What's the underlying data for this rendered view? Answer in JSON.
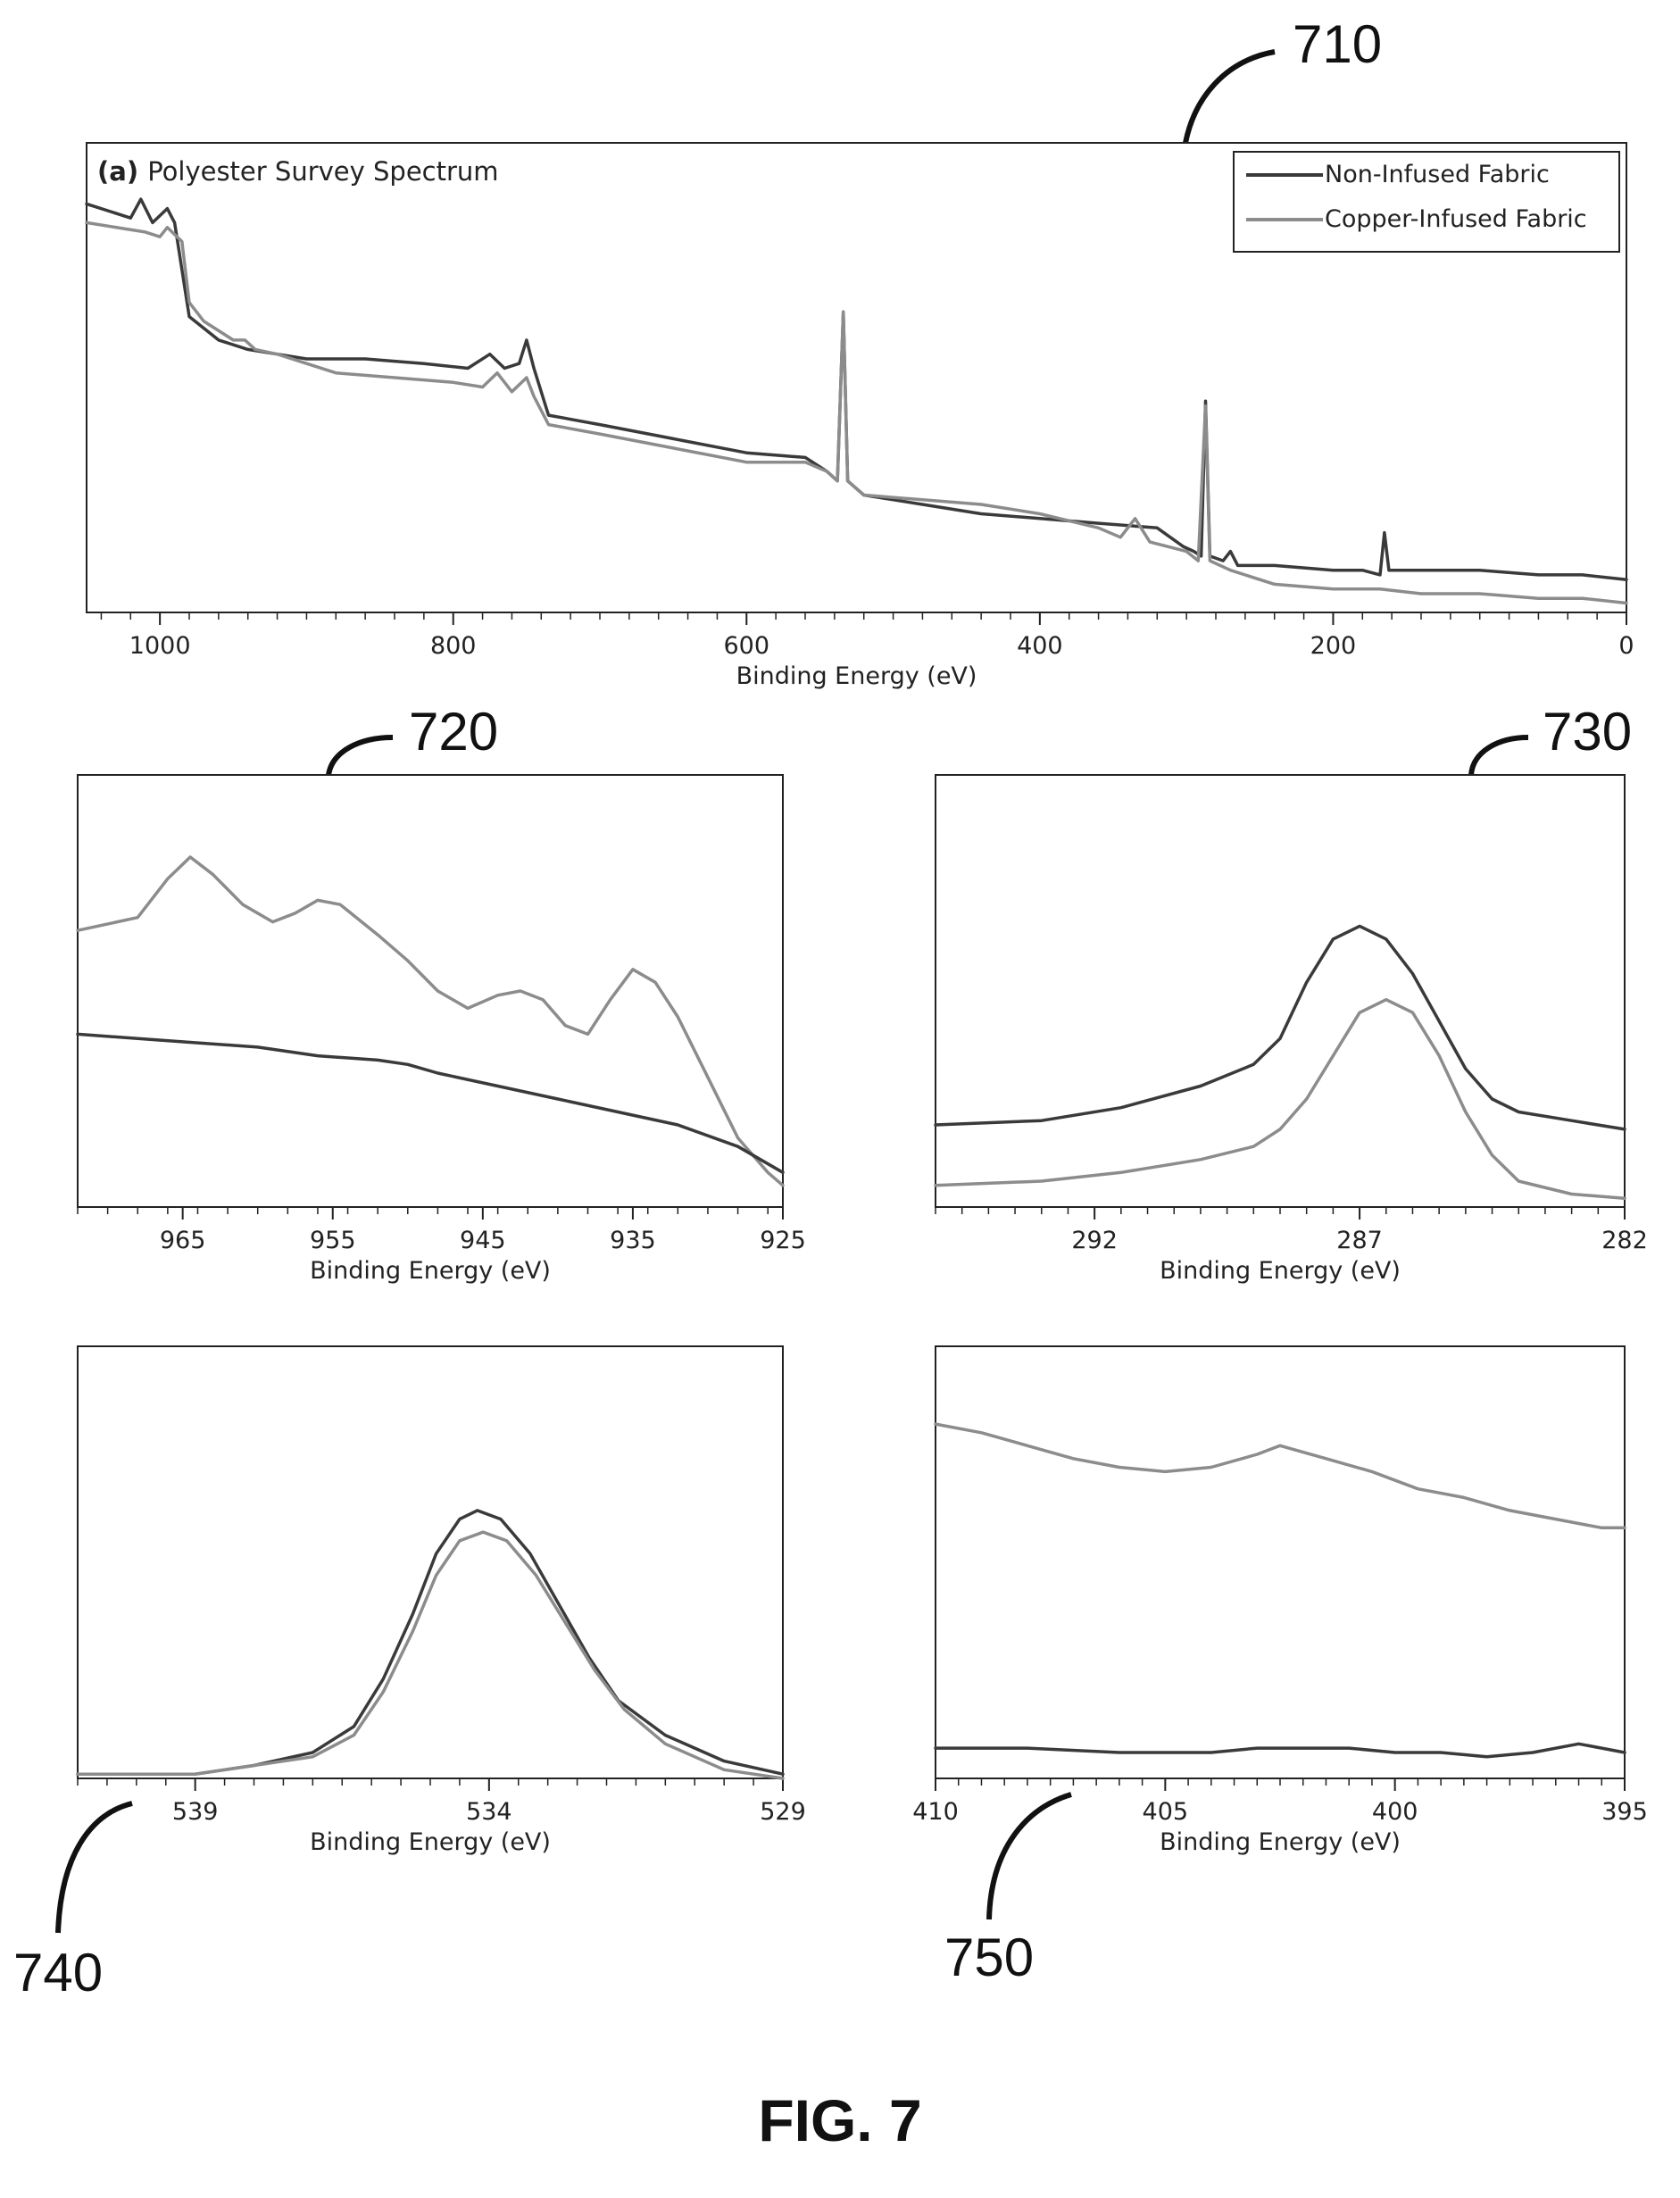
{
  "figure_label": "FIG. 7",
  "reference_numerals": [
    "710",
    "720",
    "730",
    "740",
    "750"
  ],
  "legend": {
    "entries": [
      "Non-Infused Fabric",
      "Copper-Infused Fabric"
    ]
  },
  "colors": {
    "non_infused": "#3a3a3a",
    "copper_infused": "#8c8c8c"
  },
  "chart_data": [
    {
      "id": "710",
      "type": "line",
      "title_prefix": "(a)",
      "title": "Polyester Survey Spectrum",
      "xlabel": "Binding Energy (eV)",
      "ylabel": "",
      "x_reversed": true,
      "xlim": [
        1050,
        0
      ],
      "ylim": [
        0,
        100
      ],
      "xticks": [
        1000,
        800,
        600,
        400,
        200,
        0
      ],
      "legend": "top-right",
      "series": [
        {
          "name": "Non-Infused Fabric",
          "points": [
            [
              1050,
              87
            ],
            [
              1020,
              84
            ],
            [
              1013,
              88
            ],
            [
              1005,
              83
            ],
            [
              995,
              86
            ],
            [
              990,
              83
            ],
            [
              980,
              63
            ],
            [
              960,
              58
            ],
            [
              940,
              56
            ],
            [
              920,
              55
            ],
            [
              900,
              54
            ],
            [
              860,
              54
            ],
            [
              820,
              53
            ],
            [
              790,
              52
            ],
            [
              775,
              55
            ],
            [
              765,
              52
            ],
            [
              755,
              53
            ],
            [
              750,
              58
            ],
            [
              745,
              52
            ],
            [
              735,
              42
            ],
            [
              700,
              40
            ],
            [
              650,
              37
            ],
            [
              600,
              34
            ],
            [
              560,
              33
            ],
            [
              545,
              30
            ],
            [
              538,
              28
            ],
            [
              534,
              64
            ],
            [
              531,
              28
            ],
            [
              520,
              25
            ],
            [
              480,
              23
            ],
            [
              440,
              21
            ],
            [
              400,
              20
            ],
            [
              360,
              19
            ],
            [
              320,
              18
            ],
            [
              302,
              14
            ],
            [
              295,
              13
            ],
            [
              290,
              12
            ],
            [
              287,
              45
            ],
            [
              284,
              12
            ],
            [
              275,
              11
            ],
            [
              270,
              13
            ],
            [
              265,
              10
            ],
            [
              240,
              10
            ],
            [
              200,
              9
            ],
            [
              180,
              9
            ],
            [
              168,
              8
            ],
            [
              165,
              17
            ],
            [
              162,
              9
            ],
            [
              140,
              9
            ],
            [
              100,
              9
            ],
            [
              60,
              8
            ],
            [
              30,
              8
            ],
            [
              0,
              7
            ]
          ]
        },
        {
          "name": "Copper-Infused Fabric",
          "points": [
            [
              1050,
              83
            ],
            [
              1010,
              81
            ],
            [
              1000,
              80
            ],
            [
              995,
              82
            ],
            [
              985,
              79
            ],
            [
              980,
              66
            ],
            [
              970,
              62
            ],
            [
              950,
              58
            ],
            [
              942,
              58
            ],
            [
              935,
              56
            ],
            [
              920,
              55
            ],
            [
              880,
              51
            ],
            [
              840,
              50
            ],
            [
              800,
              49
            ],
            [
              780,
              48
            ],
            [
              770,
              51
            ],
            [
              760,
              47
            ],
            [
              750,
              50
            ],
            [
              745,
              46
            ],
            [
              735,
              40
            ],
            [
              700,
              38
            ],
            [
              650,
              35
            ],
            [
              600,
              32
            ],
            [
              560,
              32
            ],
            [
              545,
              30
            ],
            [
              538,
              28
            ],
            [
              534,
              64
            ],
            [
              531,
              28
            ],
            [
              520,
              25
            ],
            [
              480,
              24
            ],
            [
              440,
              23
            ],
            [
              400,
              21
            ],
            [
              360,
              18
            ],
            [
              345,
              16
            ],
            [
              335,
              20
            ],
            [
              325,
              15
            ],
            [
              300,
              13
            ],
            [
              292,
              11
            ],
            [
              287,
              44
            ],
            [
              284,
              11
            ],
            [
              270,
              9
            ],
            [
              240,
              6
            ],
            [
              200,
              5
            ],
            [
              180,
              5
            ],
            [
              168,
              5
            ],
            [
              140,
              4
            ],
            [
              100,
              4
            ],
            [
              60,
              3
            ],
            [
              30,
              3
            ],
            [
              0,
              2
            ]
          ]
        }
      ]
    },
    {
      "id": "720",
      "type": "line",
      "title": "",
      "xlabel": "Binding Energy (eV)",
      "ylabel": "",
      "x_reversed": true,
      "xlim": [
        972,
        925
      ],
      "ylim": [
        0,
        100
      ],
      "xticks": [
        965,
        955,
        945,
        935,
        925
      ],
      "series": [
        {
          "name": "Copper-Infused Fabric",
          "points": [
            [
              972,
              64
            ],
            [
              968,
              67
            ],
            [
              966,
              76
            ],
            [
              964.5,
              81
            ],
            [
              963,
              77
            ],
            [
              961,
              70
            ],
            [
              959,
              66
            ],
            [
              957.5,
              68
            ],
            [
              956,
              71
            ],
            [
              954.5,
              70
            ],
            [
              952,
              63
            ],
            [
              950,
              57
            ],
            [
              948,
              50
            ],
            [
              946,
              46
            ],
            [
              944,
              49
            ],
            [
              942.5,
              50
            ],
            [
              941,
              48
            ],
            [
              939.5,
              42
            ],
            [
              938,
              40
            ],
            [
              936.5,
              48
            ],
            [
              935,
              55
            ],
            [
              933.5,
              52
            ],
            [
              932,
              44
            ],
            [
              930,
              30
            ],
            [
              928,
              16
            ],
            [
              926,
              8
            ],
            [
              925,
              5
            ]
          ]
        },
        {
          "name": "Non-Infused Fabric",
          "points": [
            [
              972,
              40
            ],
            [
              968,
              39
            ],
            [
              964,
              38
            ],
            [
              960,
              37
            ],
            [
              956,
              35
            ],
            [
              952,
              34
            ],
            [
              950,
              33
            ],
            [
              948,
              31
            ],
            [
              944,
              28
            ],
            [
              940,
              25
            ],
            [
              936,
              22
            ],
            [
              932,
              19
            ],
            [
              928,
              14
            ],
            [
              925,
              8
            ]
          ]
        }
      ]
    },
    {
      "id": "730",
      "type": "line",
      "title": "",
      "xlabel": "Binding Energy (eV)",
      "ylabel": "",
      "x_reversed": true,
      "xlim": [
        295,
        282
      ],
      "ylim": [
        0,
        100
      ],
      "xticks": [
        292,
        287,
        282
      ],
      "series": [
        {
          "name": "Non-Infused Fabric",
          "points": [
            [
              295,
              19
            ],
            [
              293,
              20
            ],
            [
              291.5,
              23
            ],
            [
              290,
              28
            ],
            [
              289,
              33
            ],
            [
              288.5,
              39
            ],
            [
              288,
              52
            ],
            [
              287.5,
              62
            ],
            [
              287,
              65
            ],
            [
              286.5,
              62
            ],
            [
              286,
              54
            ],
            [
              285.5,
              43
            ],
            [
              285,
              32
            ],
            [
              284.5,
              25
            ],
            [
              284,
              22
            ],
            [
              283,
              20
            ],
            [
              282,
              18
            ]
          ]
        },
        {
          "name": "Copper-Infused Fabric",
          "points": [
            [
              295,
              5
            ],
            [
              293,
              6
            ],
            [
              291.5,
              8
            ],
            [
              290,
              11
            ],
            [
              289,
              14
            ],
            [
              288.5,
              18
            ],
            [
              288,
              25
            ],
            [
              287.5,
              35
            ],
            [
              287,
              45
            ],
            [
              286.5,
              48
            ],
            [
              286,
              45
            ],
            [
              285.5,
              35
            ],
            [
              285,
              22
            ],
            [
              284.5,
              12
            ],
            [
              284,
              6
            ],
            [
              283,
              3
            ],
            [
              282,
              2
            ]
          ]
        }
      ]
    },
    {
      "id": "740",
      "type": "line",
      "title": "",
      "xlabel": "Binding Energy (eV)",
      "ylabel": "",
      "x_reversed": true,
      "xlim": [
        541,
        529
      ],
      "ylim": [
        0,
        100
      ],
      "xticks": [
        539,
        534,
        529
      ],
      "series": [
        {
          "name": "Non-Infused Fabric",
          "points": [
            [
              541,
              1
            ],
            [
              539,
              1
            ],
            [
              538,
              3
            ],
            [
              537,
              6
            ],
            [
              536.3,
              12
            ],
            [
              535.8,
              23
            ],
            [
              535.3,
              38
            ],
            [
              534.9,
              52
            ],
            [
              534.5,
              60
            ],
            [
              534.2,
              62
            ],
            [
              533.8,
              60
            ],
            [
              533.3,
              52
            ],
            [
              532.8,
              40
            ],
            [
              532.3,
              28
            ],
            [
              531.8,
              18
            ],
            [
              531,
              10
            ],
            [
              530,
              4
            ],
            [
              529,
              1
            ]
          ]
        },
        {
          "name": "Copper-Infused Fabric",
          "points": [
            [
              541,
              1
            ],
            [
              539,
              1
            ],
            [
              538,
              3
            ],
            [
              537,
              5
            ],
            [
              536.3,
              10
            ],
            [
              535.8,
              20
            ],
            [
              535.3,
              34
            ],
            [
              534.9,
              47
            ],
            [
              534.5,
              55
            ],
            [
              534.1,
              57
            ],
            [
              533.7,
              55
            ],
            [
              533.2,
              47
            ],
            [
              532.7,
              36
            ],
            [
              532.2,
              25
            ],
            [
              531.7,
              16
            ],
            [
              531,
              8
            ],
            [
              530,
              2
            ],
            [
              529,
              0
            ]
          ]
        }
      ]
    },
    {
      "id": "750",
      "type": "line",
      "title": "",
      "xlabel": "Binding Energy (eV)",
      "ylabel": "",
      "x_reversed": true,
      "xlim": [
        410,
        395
      ],
      "ylim": [
        0,
        100
      ],
      "xticks": [
        410,
        405,
        400,
        395
      ],
      "series": [
        {
          "name": "Copper-Infused Fabric",
          "points": [
            [
              410,
              82
            ],
            [
              409,
              80
            ],
            [
              408,
              77
            ],
            [
              407,
              74
            ],
            [
              406,
              72
            ],
            [
              405,
              71
            ],
            [
              404,
              72
            ],
            [
              403,
              75
            ],
            [
              402.5,
              77
            ],
            [
              401.5,
              74
            ],
            [
              400.5,
              71
            ],
            [
              399.5,
              67
            ],
            [
              398.5,
              65
            ],
            [
              397.5,
              62
            ],
            [
              396.5,
              60
            ],
            [
              395.5,
              58
            ],
            [
              395,
              58
            ]
          ]
        },
        {
          "name": "Non-Infused Fabric",
          "points": [
            [
              410,
              7
            ],
            [
              408,
              7
            ],
            [
              406,
              6
            ],
            [
              404,
              6
            ],
            [
              403,
              7
            ],
            [
              402,
              7
            ],
            [
              401,
              7
            ],
            [
              400,
              6
            ],
            [
              399,
              6
            ],
            [
              398,
              5
            ],
            [
              397,
              6
            ],
            [
              396,
              8
            ],
            [
              395.5,
              7
            ],
            [
              395,
              6
            ]
          ]
        }
      ]
    }
  ]
}
